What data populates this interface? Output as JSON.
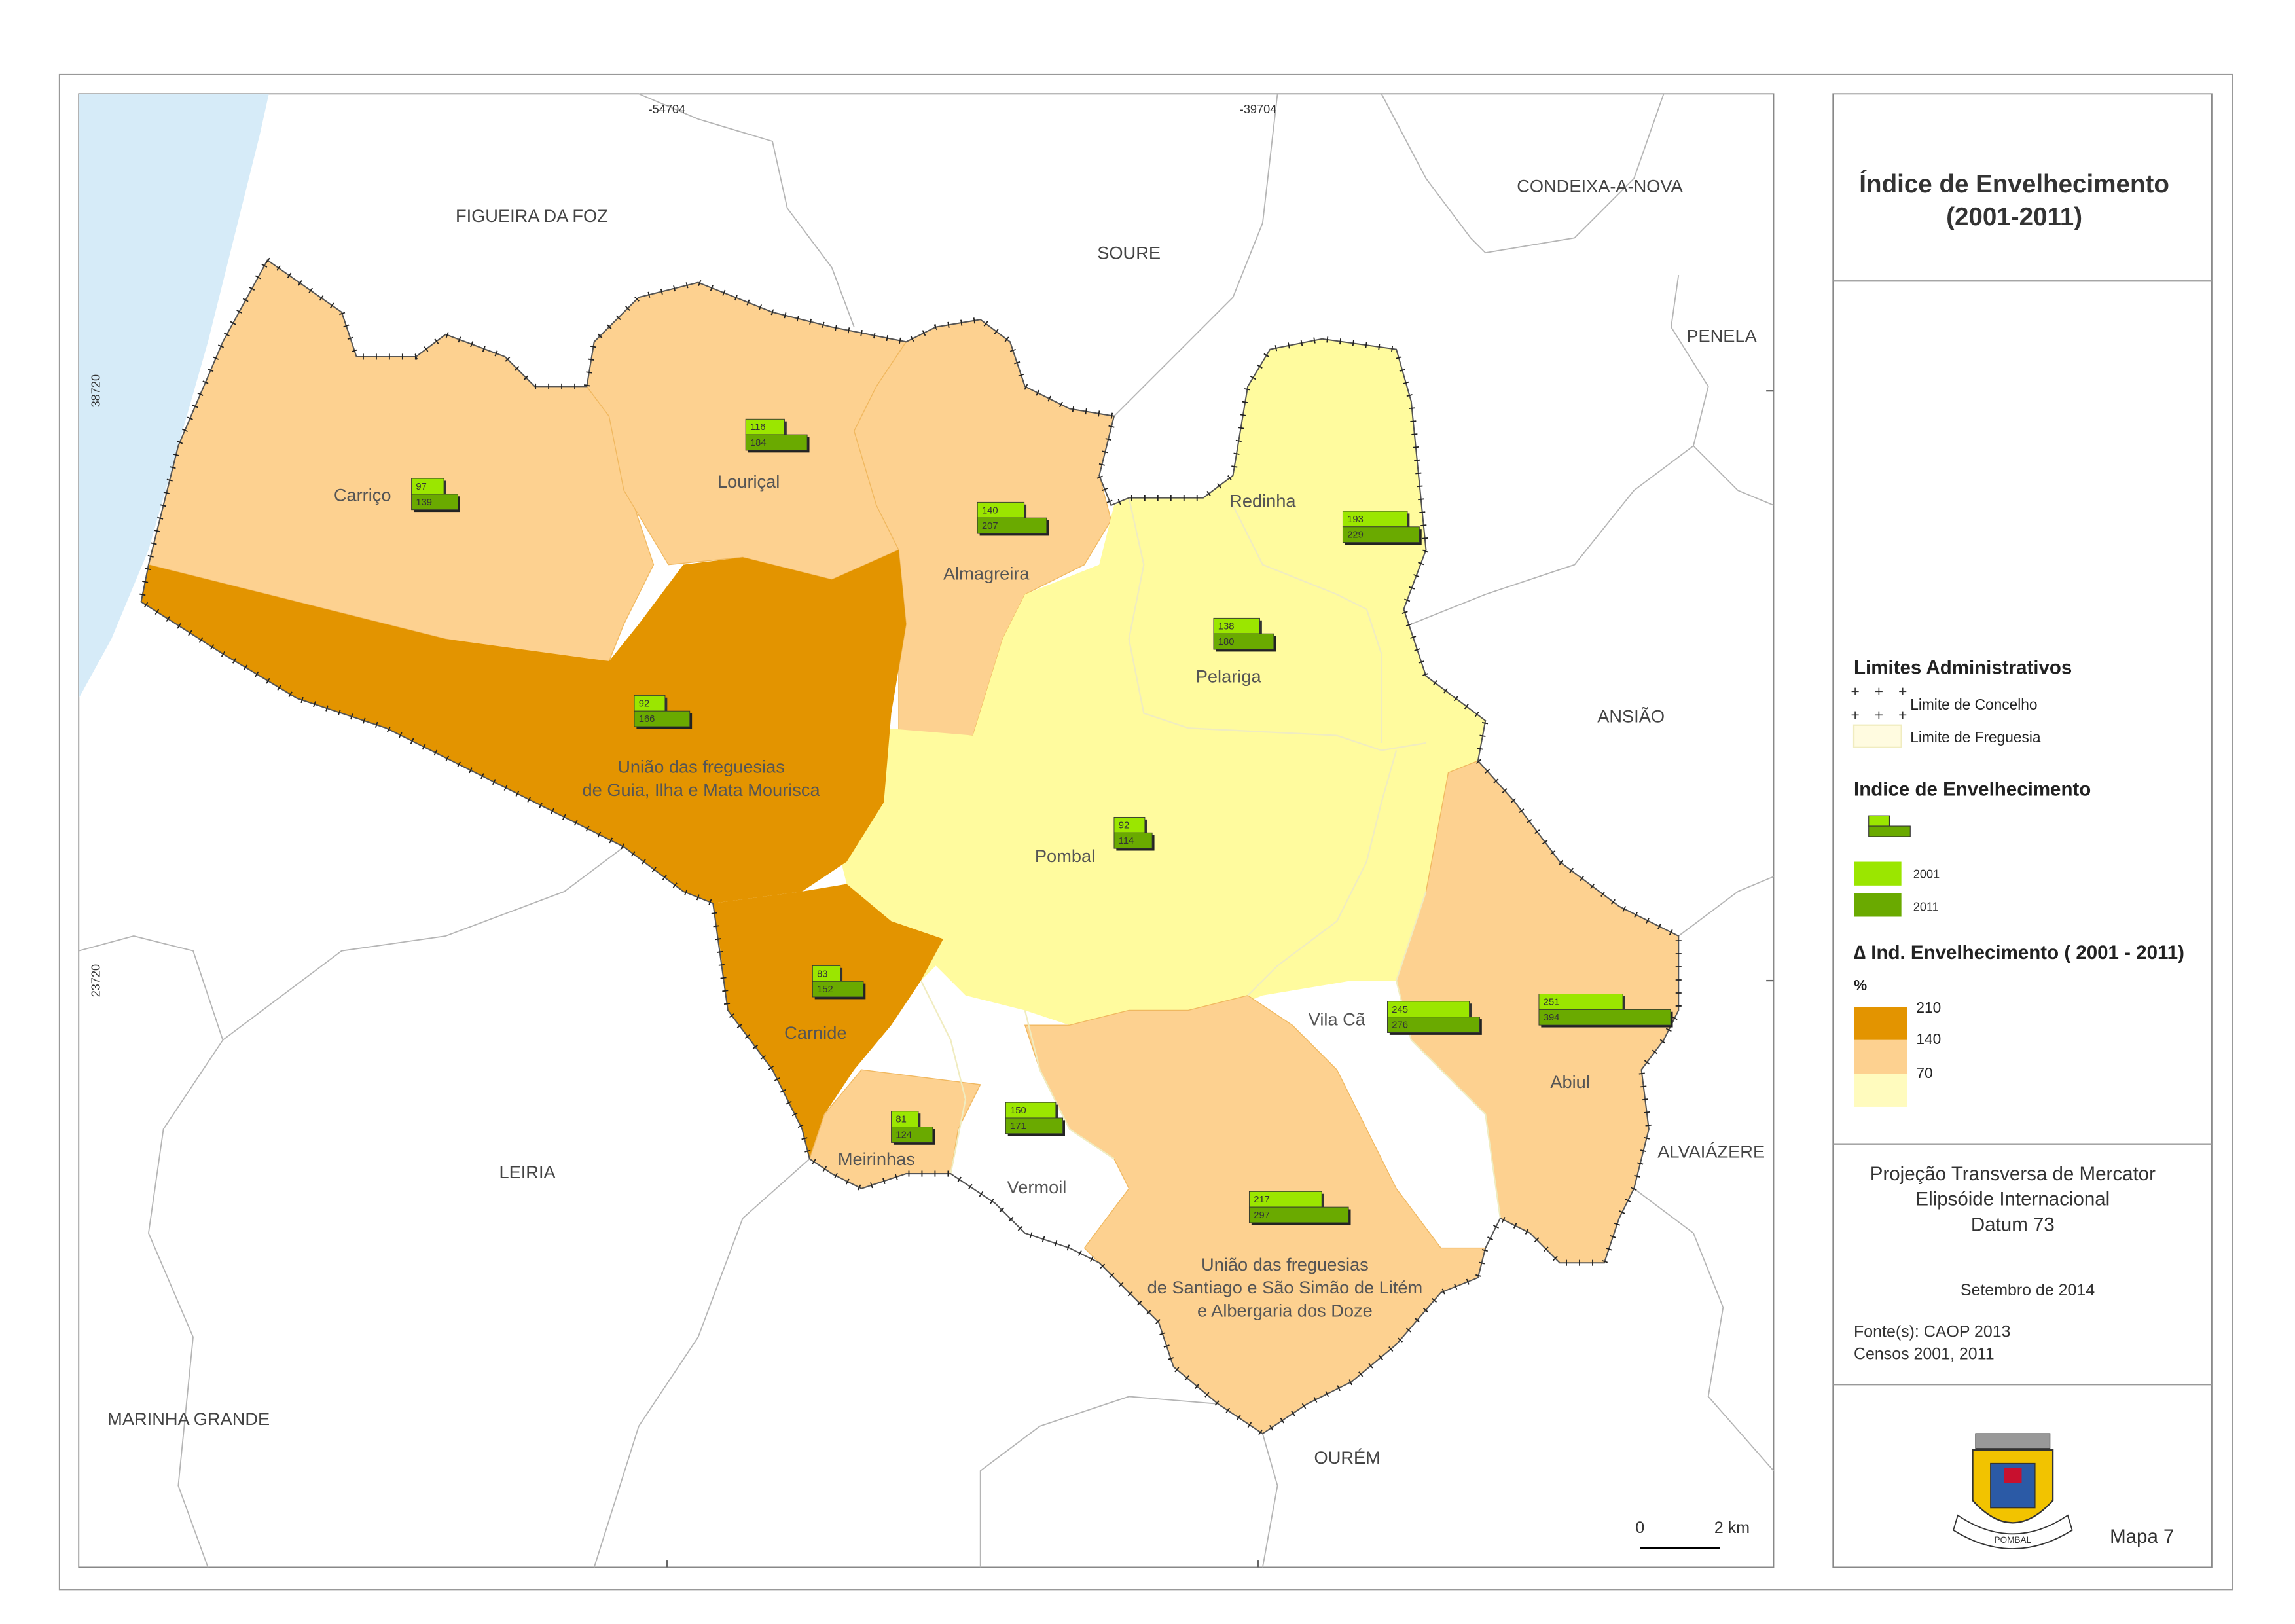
{
  "title": [
    "Índice de Envelhecimento",
    "(2001-2011)"
  ],
  "grid_labels": {
    "x": [
      -54704,
      -39704
    ],
    "y": [
      38720,
      23720
    ]
  },
  "neighbors": [
    "FIGUEIRA DA FOZ",
    "SOURE",
    "CONDEIXA-A-NOVA",
    "PENELA",
    "ANSIÃO",
    "ALVAIÁZERE",
    "LEIRIA",
    "MARINHA GRANDE",
    "OURÉM"
  ],
  "parishes": [
    {
      "name": [
        "Carriço"
      ],
      "v2001": 97,
      "v2011": 139
    },
    {
      "name": [
        "Louriçal"
      ],
      "v2001": 116,
      "v2011": 184
    },
    {
      "name": [
        "Almagreira"
      ],
      "v2001": 140,
      "v2011": 207
    },
    {
      "name": [
        "Redinha"
      ],
      "v2001": 193,
      "v2011": 229
    },
    {
      "name": [
        "Pelariga"
      ],
      "v2001": 138,
      "v2011": 180
    },
    {
      "name": [
        "União das freguesias",
        "de Guia, Ilha e Mata Mourisca"
      ],
      "v2001": 92,
      "v2011": 166
    },
    {
      "name": [
        "Pombal"
      ],
      "v2001": 92,
      "v2011": 114
    },
    {
      "name": [
        "Carnide"
      ],
      "v2001": 83,
      "v2011": 152
    },
    {
      "name": [
        "Vila Cã"
      ],
      "v2001": 245,
      "v2011": 276
    },
    {
      "name": [
        "Abiul"
      ],
      "v2001": 251,
      "v2011": 394
    },
    {
      "name": [
        "Meirinhas"
      ],
      "v2001": 81,
      "v2011": 124
    },
    {
      "name": [
        "Vermoil"
      ],
      "v2001": 150,
      "v2011": 171
    },
    {
      "name": [
        "União das freguesias",
        "de Santiago e São Simão de Litém",
        "e Albergaria dos Doze"
      ],
      "v2001": 217,
      "v2011": 297
    }
  ],
  "legend": {
    "limits_title": "Limites Administrativos",
    "concelho": "Limite de Concelho",
    "freguesia": "Limite de Freguesia",
    "index_title": "Indice de Envelhecimento",
    "year_2001": "2001",
    "year_2011": "2011",
    "delta_title": "∆ Ind. Envelhecimento ( 2001 - 2011)",
    "unit": "%",
    "classes": [
      210,
      140,
      70
    ]
  },
  "projection": [
    "Projeção Transversa de Mercator",
    "Elipsóide Internacional",
    "Datum 73"
  ],
  "date": "Setembro de 2014",
  "sources": [
    "Fonte(s): CAOP 2013",
    "Censos 2001, 2011"
  ],
  "scale": {
    "start": 0,
    "end": "2 km"
  },
  "crest": "POMBAL",
  "map_number": "Mapa 7"
}
